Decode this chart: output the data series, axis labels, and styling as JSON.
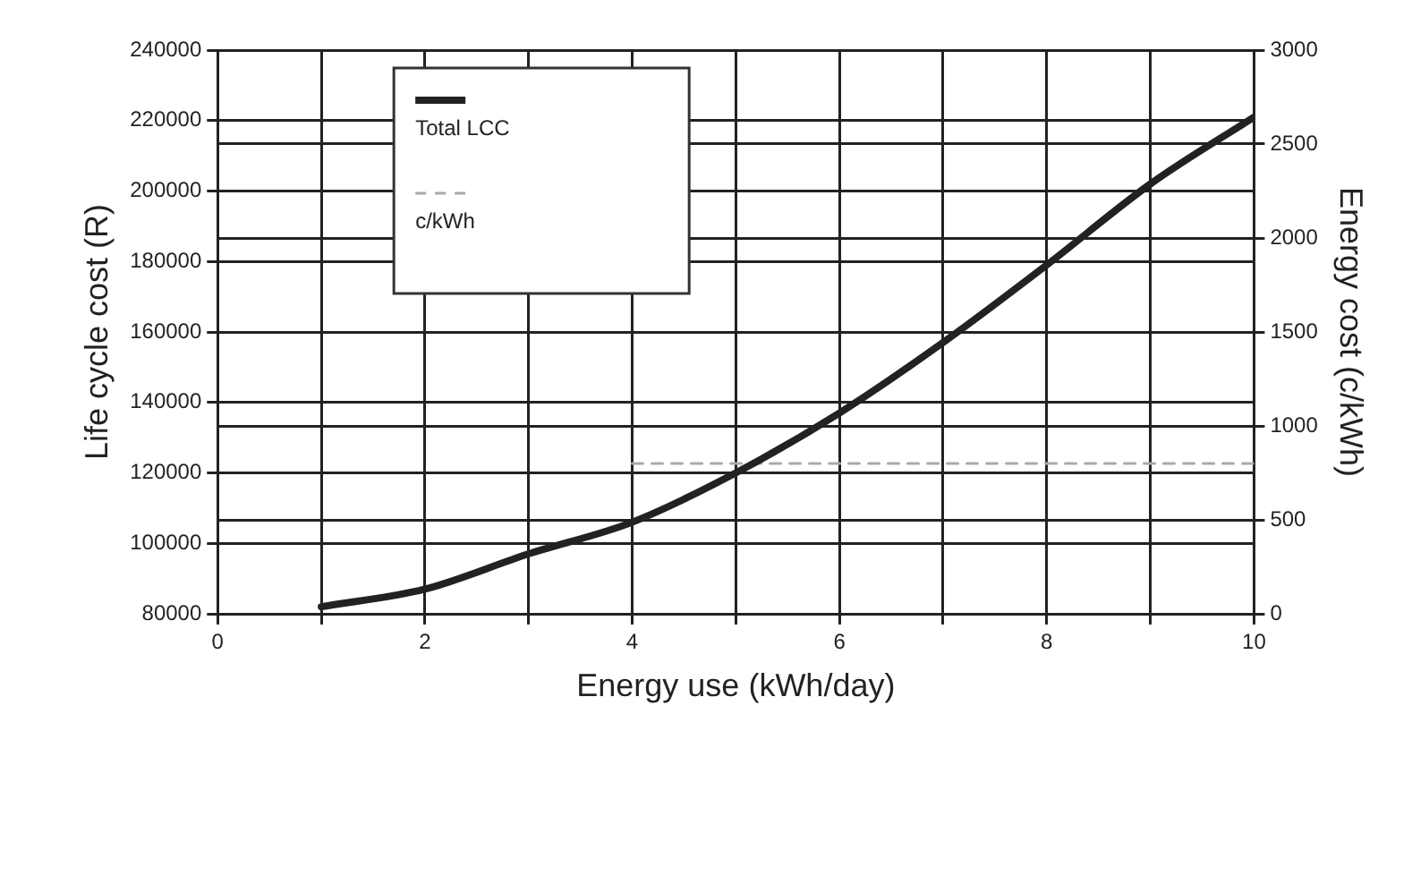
{
  "chart_data": {
    "type": "line",
    "xlabel": "Energy use (kWh/day)",
    "ylabel": "Life cycle cost (R)",
    "y2label": "Energy cost (c/kWh)",
    "series": [
      {
        "name": "Total LCC",
        "color": "#222222",
        "x": [
          1,
          2,
          3,
          4,
          5,
          6,
          7,
          8,
          9,
          10
        ],
        "values": [
          82000,
          87000,
          97000,
          106000,
          120000,
          137000,
          157000,
          179000,
          202000,
          221000
        ]
      },
      {
        "name": "c/kWh",
        "color": "#aaaaaa",
        "axis": "y2",
        "line_style": "dashed",
        "x": [
          4,
          10
        ],
        "values": [
          800,
          800
        ]
      }
    ],
    "xlim": [
      0,
      10
    ],
    "xticks": [
      0,
      {
        "value": 1,
        "label": null
      },
      2,
      {
        "value": 3,
        "label": null
      },
      4,
      {
        "value": 5,
        "label": null
      },
      6,
      {
        "value": 7,
        "label": null
      },
      8,
      {
        "value": 9,
        "label": null
      },
      10
    ],
    "ylim": [
      80000,
      240000
    ],
    "yticks": [
      80000,
      100000,
      120000,
      140000,
      160000,
      180000,
      200000,
      220000,
      240000
    ],
    "y2lim": [
      0,
      3000
    ],
    "y2ticks": [
      0,
      500,
      1000,
      1500,
      2000,
      2500,
      3000
    ],
    "grid": true,
    "legend": "top left",
    "marker": "none"
  }
}
